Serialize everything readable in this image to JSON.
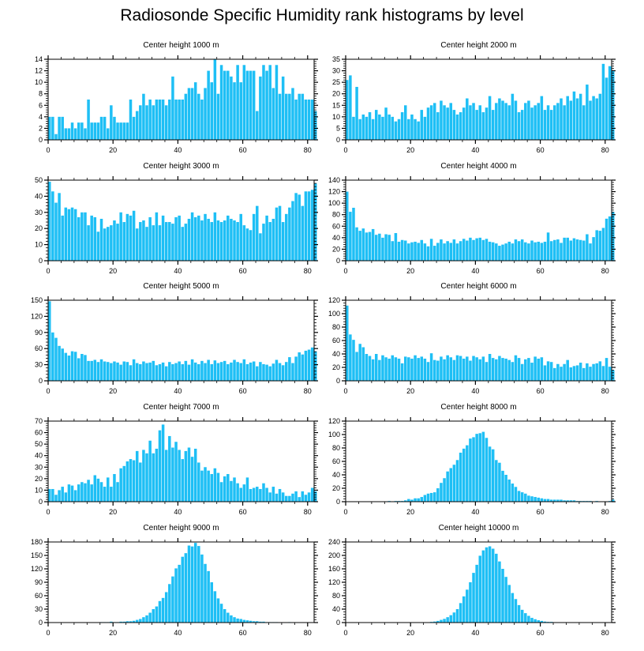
{
  "title": "Radiosonde Specific Humidity rank histograms by level",
  "bar_color": "#1EBFF5",
  "chart_data": [
    {
      "type": "bar",
      "title": "Center height 1000 m",
      "xlim": [
        0,
        82
      ],
      "ylim": [
        0,
        14
      ],
      "xticks": [
        0,
        20,
        40,
        60,
        80
      ],
      "yticks": [
        0,
        2,
        4,
        6,
        8,
        10,
        12,
        14
      ],
      "values": [
        4,
        4,
        1,
        4,
        4,
        2,
        2,
        3,
        2,
        3,
        3,
        2,
        7,
        3,
        3,
        3,
        4,
        4,
        2,
        6,
        4,
        3,
        3,
        3,
        3,
        7,
        4,
        5,
        6,
        8,
        6,
        7,
        6,
        7,
        7,
        7,
        6,
        7,
        11,
        7,
        7,
        7,
        8,
        9,
        9,
        10,
        8,
        7,
        9,
        12,
        10,
        14,
        8,
        13,
        12,
        12,
        11,
        10,
        13,
        10,
        13,
        12,
        12,
        12,
        5,
        11,
        13,
        12,
        13,
        9,
        13,
        8,
        11,
        8,
        8,
        9,
        7,
        8,
        8,
        7,
        7,
        7,
        5
      ],
      "title_bind": "Center height 1000 m"
    },
    {
      "type": "bar",
      "title": "Center height 2000 m",
      "xlim": [
        0,
        82
      ],
      "ylim": [
        0,
        35
      ],
      "xticks": [
        0,
        20,
        40,
        60,
        80
      ],
      "yticks": [
        0,
        5,
        10,
        15,
        20,
        25,
        30,
        35
      ],
      "values": [
        26,
        28,
        10,
        23,
        9,
        11,
        10,
        12,
        9,
        13,
        11,
        10,
        14,
        11,
        10,
        8,
        9,
        12,
        15,
        9,
        11,
        9,
        8,
        13,
        10,
        14,
        15,
        16,
        12,
        17,
        15,
        14,
        16,
        13,
        11,
        12,
        14,
        18,
        15,
        16,
        13,
        15,
        12,
        14,
        19,
        13,
        16,
        18,
        17,
        16,
        15,
        20,
        17,
        12,
        13,
        16,
        17,
        14,
        15,
        16,
        19,
        13,
        15,
        13,
        15,
        16,
        18,
        15,
        19,
        17,
        21,
        18,
        20,
        15,
        24,
        17,
        19,
        18,
        20,
        33,
        27,
        32,
        30
      ]
    },
    {
      "type": "bar",
      "title": "Center height 3000 m",
      "xlim": [
        0,
        82
      ],
      "ylim": [
        0,
        50
      ],
      "xticks": [
        0,
        20,
        40,
        60,
        80
      ],
      "yticks": [
        0,
        10,
        20,
        30,
        40,
        50
      ],
      "values": [
        49,
        43,
        36,
        42,
        28,
        33,
        32,
        33,
        32,
        27,
        30,
        30,
        22,
        28,
        27,
        18,
        26,
        20,
        21,
        22,
        25,
        23,
        30,
        24,
        29,
        28,
        31,
        20,
        24,
        25,
        21,
        27,
        22,
        30,
        22,
        28,
        24,
        24,
        23,
        27,
        28,
        21,
        23,
        26,
        30,
        27,
        28,
        25,
        29,
        26,
        24,
        30,
        25,
        24,
        25,
        28,
        26,
        25,
        24,
        29,
        22,
        20,
        19,
        29,
        34,
        17,
        23,
        28,
        24,
        26,
        33,
        34,
        24,
        29,
        33,
        37,
        42,
        41,
        34,
        43,
        43,
        44,
        48
      ]
    },
    {
      "type": "bar",
      "title": "Center height 4000 m",
      "xlim": [
        0,
        82
      ],
      "ylim": [
        0,
        140
      ],
      "xticks": [
        0,
        20,
        40,
        60,
        80
      ],
      "yticks": [
        0,
        20,
        40,
        60,
        80,
        100,
        120,
        140
      ],
      "values": [
        120,
        85,
        92,
        58,
        52,
        56,
        49,
        50,
        55,
        45,
        47,
        40,
        46,
        45,
        34,
        48,
        33,
        36,
        35,
        30,
        32,
        33,
        31,
        36,
        30,
        25,
        38,
        26,
        31,
        37,
        30,
        34,
        31,
        37,
        30,
        34,
        38,
        35,
        40,
        36,
        39,
        40,
        36,
        38,
        33,
        32,
        30,
        26,
        28,
        30,
        33,
        30,
        37,
        34,
        37,
        32,
        30,
        35,
        32,
        33,
        31,
        33,
        49,
        34,
        36,
        37,
        31,
        40,
        40,
        35,
        39,
        37,
        36,
        35,
        46,
        30,
        41,
        53,
        52,
        57,
        73,
        77,
        85
      ]
    },
    {
      "type": "bar",
      "title": "Center height 5000 m",
      "xlim": [
        0,
        82
      ],
      "ylim": [
        0,
        150
      ],
      "xticks": [
        0,
        20,
        40,
        60,
        80
      ],
      "yticks": [
        0,
        30,
        60,
        90,
        120,
        150
      ],
      "values": [
        148,
        90,
        80,
        65,
        60,
        52,
        47,
        55,
        54,
        42,
        50,
        48,
        37,
        37,
        39,
        35,
        40,
        36,
        35,
        33,
        36,
        34,
        30,
        36,
        35,
        29,
        40,
        33,
        31,
        36,
        33,
        34,
        37,
        29,
        31,
        34,
        27,
        35,
        31,
        33,
        36,
        31,
        37,
        30,
        40,
        34,
        31,
        37,
        33,
        39,
        31,
        38,
        33,
        35,
        37,
        31,
        34,
        39,
        35,
        33,
        40,
        31,
        34,
        36,
        27,
        35,
        31,
        30,
        27,
        32,
        39,
        33,
        29,
        35,
        44,
        33,
        45,
        53,
        49,
        56,
        58,
        62,
        55
      ]
    },
    {
      "type": "bar",
      "title": "Center height 6000 m",
      "xlim": [
        0,
        82
      ],
      "ylim": [
        0,
        120
      ],
      "xticks": [
        0,
        20,
        40,
        60,
        80
      ],
      "yticks": [
        0,
        20,
        40,
        60,
        80,
        100,
        120
      ],
      "values": [
        112,
        69,
        61,
        43,
        55,
        50,
        40,
        37,
        32,
        40,
        31,
        38,
        35,
        33,
        38,
        35,
        33,
        26,
        36,
        35,
        33,
        38,
        34,
        36,
        33,
        28,
        41,
        31,
        30,
        36,
        32,
        38,
        35,
        31,
        38,
        37,
        33,
        36,
        30,
        37,
        35,
        32,
        36,
        28,
        40,
        34,
        32,
        37,
        34,
        33,
        31,
        28,
        38,
        34,
        25,
        32,
        34,
        27,
        36,
        33,
        35,
        23,
        29,
        28,
        19,
        25,
        21,
        25,
        31,
        20,
        22,
        23,
        27,
        19,
        26,
        21,
        25,
        26,
        29,
        22,
        34,
        21,
        16
      ]
    },
    {
      "type": "bar",
      "title": "Center height 7000 m",
      "xlim": [
        0,
        82
      ],
      "ylim": [
        0,
        70
      ],
      "xticks": [
        0,
        20,
        40,
        60,
        80
      ],
      "yticks": [
        0,
        10,
        20,
        30,
        40,
        50,
        60,
        70
      ],
      "values": [
        11,
        11,
        6,
        10,
        13,
        8,
        15,
        14,
        10,
        15,
        17,
        16,
        19,
        15,
        23,
        20,
        17,
        13,
        21,
        13,
        24,
        17,
        29,
        31,
        35,
        37,
        36,
        44,
        34,
        45,
        42,
        53,
        42,
        46,
        62,
        67,
        45,
        57,
        47,
        52,
        45,
        37,
        44,
        47,
        39,
        46,
        34,
        27,
        30,
        27,
        24,
        29,
        25,
        17,
        22,
        24,
        18,
        21,
        16,
        12,
        15,
        21,
        11,
        12,
        13,
        11,
        16,
        12,
        8,
        13,
        7,
        11,
        8,
        5,
        5,
        7,
        9,
        4,
        9,
        6,
        8,
        12,
        9
      ]
    },
    {
      "type": "bar",
      "title": "Center height 8000 m",
      "xlim": [
        0,
        82
      ],
      "ylim": [
        0,
        120
      ],
      "xticks": [
        0,
        20,
        40,
        60,
        80
      ],
      "yticks": [
        0,
        20,
        40,
        60,
        80,
        100,
        120
      ],
      "values": [
        0,
        0,
        0,
        0,
        0,
        0,
        0,
        0,
        0,
        0,
        0,
        0,
        0,
        1,
        0,
        1,
        1,
        1,
        2,
        4,
        3,
        5,
        5,
        7,
        10,
        12,
        13,
        14,
        20,
        28,
        35,
        45,
        50,
        55,
        62,
        73,
        79,
        84,
        94,
        96,
        101,
        102,
        104,
        95,
        82,
        78,
        62,
        58,
        46,
        40,
        33,
        27,
        22,
        16,
        14,
        12,
        9,
        8,
        7,
        6,
        5,
        4,
        4,
        3,
        3,
        3,
        3,
        2,
        2,
        2,
        2,
        1,
        1,
        1,
        1,
        1,
        0,
        1,
        0,
        0,
        0,
        1,
        3
      ]
    },
    {
      "type": "bar",
      "title": "Center height 9000 m",
      "xlim": [
        0,
        82
      ],
      "ylim": [
        0,
        180
      ],
      "xticks": [
        0,
        20,
        40,
        60,
        80
      ],
      "yticks": [
        0,
        30,
        60,
        90,
        120,
        150,
        180
      ],
      "values": [
        0,
        0,
        0,
        0,
        0,
        0,
        0,
        0,
        0,
        0,
        0,
        0,
        0,
        0,
        0,
        0,
        1,
        1,
        1,
        2,
        1,
        1,
        2,
        2,
        3,
        3,
        4,
        6,
        8,
        12,
        16,
        22,
        30,
        36,
        48,
        55,
        68,
        86,
        103,
        121,
        129,
        147,
        155,
        172,
        170,
        178,
        171,
        152,
        131,
        115,
        90,
        70,
        54,
        42,
        30,
        22,
        16,
        12,
        9,
        8,
        6,
        5,
        4,
        3,
        3,
        2,
        2,
        1,
        1,
        1,
        1,
        0,
        0,
        0,
        1,
        0,
        0,
        0,
        0,
        0,
        0,
        0,
        0
      ]
    },
    {
      "type": "bar",
      "title": "Center height 10000 m",
      "xlim": [
        0,
        82
      ],
      "ylim": [
        0,
        240
      ],
      "xticks": [
        0,
        20,
        40,
        60,
        80
      ],
      "yticks": [
        0,
        40,
        80,
        120,
        160,
        200,
        240
      ],
      "values": [
        0,
        0,
        0,
        0,
        0,
        0,
        0,
        0,
        0,
        0,
        0,
        0,
        0,
        0,
        0,
        0,
        0,
        0,
        0,
        0,
        0,
        0,
        0,
        0,
        1,
        1,
        2,
        3,
        5,
        8,
        11,
        16,
        22,
        30,
        40,
        58,
        78,
        98,
        120,
        148,
        172,
        199,
        215,
        224,
        227,
        220,
        205,
        182,
        160,
        136,
        112,
        88,
        70,
        52,
        38,
        28,
        20,
        14,
        10,
        7,
        5,
        3,
        2,
        2,
        1,
        1,
        1,
        0,
        0,
        0,
        0,
        0,
        0,
        0,
        0,
        0,
        0,
        0,
        0,
        0,
        0,
        0,
        0
      ]
    }
  ]
}
